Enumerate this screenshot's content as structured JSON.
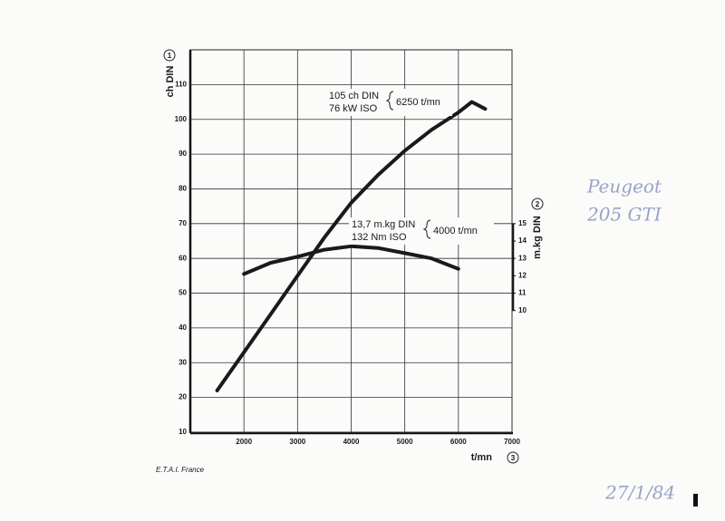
{
  "chart_data": {
    "type": "line",
    "y_label": "ch DIN",
    "y_label_number": "1",
    "y2_label": "m.kg DIN",
    "y2_label_number": "2",
    "x_label": "t/mn",
    "x_label_number": "3",
    "xlim": [
      1000,
      7000
    ],
    "xticks": [
      2000,
      3000,
      4000,
      5000,
      6000,
      7000
    ],
    "ylim": [
      10,
      120
    ],
    "yticks": [
      10,
      20,
      30,
      40,
      50,
      60,
      70,
      80,
      90,
      100,
      110
    ],
    "y2lim": [
      3,
      25
    ],
    "y2ticks": [
      10,
      11,
      12,
      13,
      14,
      15
    ],
    "grid": true,
    "series": [
      {
        "color": "#1a1a1a",
        "x": [
          1500,
          2000,
          2500,
          3000,
          3500,
          4000,
          4500,
          5000,
          5500,
          6000,
          6250,
          6500
        ],
        "values": [
          22,
          33,
          44,
          55,
          66,
          76,
          84,
          91,
          97,
          102,
          105,
          103
        ]
      },
      {
        "color": "#1a1a1a",
        "axis": "y2",
        "x": [
          2000,
          2500,
          3000,
          3500,
          4000,
          4500,
          5000,
          5500,
          6000
        ],
        "values": [
          12.1,
          12.75,
          13.1,
          13.5,
          13.7,
          13.6,
          13.3,
          13.0,
          12.4
        ]
      }
    ],
    "annotations": [
      {
        "lines": [
          "105 ch DIN",
          "76 kW ISO"
        ],
        "rpm": "6250 t/mn"
      },
      {
        "lines": [
          "13,7 m.kg DIN",
          "132 Nm ISO"
        ],
        "rpm": "4000 t/mn"
      }
    ],
    "credit": "E.T.A.I. France",
    "handwritten": [
      "Peugeot",
      "205 GTI",
      "27/1/84"
    ]
  }
}
